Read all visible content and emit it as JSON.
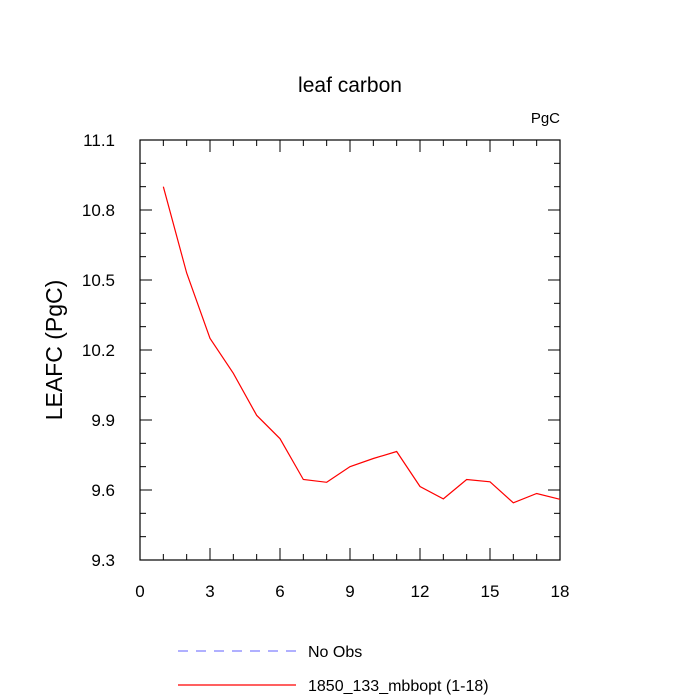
{
  "chart_data": {
    "type": "line",
    "title": "leaf carbon",
    "units_label": "PgC",
    "ylabel": "LEAFC  (PgC)",
    "xlabel": "",
    "xlim": [
      0,
      18
    ],
    "ylim": [
      9.3,
      11.1
    ],
    "xticks": [
      0,
      3,
      6,
      9,
      12,
      15,
      18
    ],
    "xtick_labels": [
      "0",
      "3",
      "6",
      "9",
      "12",
      "15",
      "18"
    ],
    "yticks": [
      9.3,
      9.6,
      9.9,
      10.2,
      10.5,
      10.8,
      11.1
    ],
    "ytick_labels": [
      "9.3",
      "9.6",
      "9.9",
      "10.2",
      "10.5",
      "10.8",
      "11.1"
    ],
    "x_minor_step": 1,
    "y_minor_step": 0.1,
    "grid": false,
    "legend_position": "bottom",
    "series": [
      {
        "name": "No Obs",
        "color": "#8080ff",
        "dash": "dashed",
        "x": [],
        "values": []
      },
      {
        "name": "1850_133_mbbopt (1-18)",
        "color": "#ff0000",
        "dash": "solid",
        "x": [
          1,
          2,
          3,
          4,
          5,
          6,
          7,
          8,
          9,
          10,
          11,
          12,
          13,
          14,
          15,
          16,
          17,
          18
        ],
        "values": [
          10.9,
          10.53,
          10.25,
          10.1,
          9.92,
          9.82,
          9.645,
          9.633,
          9.7,
          9.735,
          9.765,
          9.615,
          9.562,
          9.645,
          9.635,
          9.545,
          9.585,
          9.56
        ]
      }
    ]
  }
}
